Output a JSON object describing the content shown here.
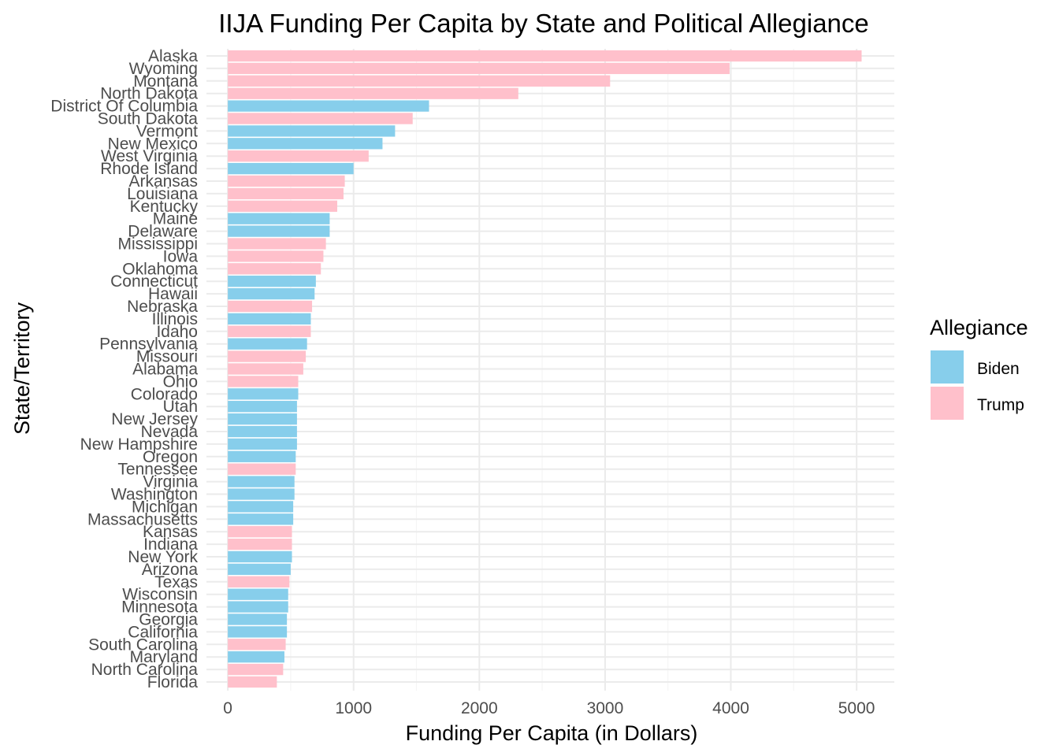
{
  "colors": {
    "Biden": "#87CEEB",
    "Trump": "#FFC0CB",
    "grid_major": "#EBEBEB",
    "grid_minor": "#F5F5F5",
    "text": "#4d4d4d"
  },
  "legend": {
    "title": "Allegiance",
    "position": "right",
    "items": [
      "Biden",
      "Trump"
    ]
  },
  "chart_data": {
    "type": "bar",
    "orientation": "horizontal",
    "title": "IIJA Funding Per Capita by State and Political Allegiance",
    "xlabel": "Funding Per Capita (in Dollars)",
    "ylabel": "State/Territory",
    "xlim": [
      -170,
      5300
    ],
    "x_ticks": [
      0,
      1000,
      2000,
      3000,
      4000,
      5000
    ],
    "grid": true,
    "categories": [
      "Alaska",
      "Wyoming",
      "Montana",
      "North Dakota",
      "District Of Columbia",
      "South Dakota",
      "Vermont",
      "New Mexico",
      "West Virginia",
      "Rhode Island",
      "Arkansas",
      "Louisiana",
      "Kentucky",
      "Maine",
      "Delaware",
      "Mississippi",
      "Iowa",
      "Oklahoma",
      "Connecticut",
      "Hawaii",
      "Nebraska",
      "Illinois",
      "Idaho",
      "Pennsylvania",
      "Missouri",
      "Alabama",
      "Ohio",
      "Colorado",
      "Utah",
      "New Jersey",
      "Nevada",
      "New Hampshire",
      "Oregon",
      "Tennessee",
      "Virginia",
      "Washington",
      "Michigan",
      "Massachusetts",
      "Kansas",
      "Indiana",
      "New York",
      "Arizona",
      "Texas",
      "Wisconsin",
      "Minnesota",
      "Georgia",
      "California",
      "South Carolina",
      "Maryland",
      "North Carolina",
      "Florida"
    ],
    "values": [
      5040,
      3990,
      3040,
      2310,
      1600,
      1470,
      1330,
      1230,
      1120,
      1000,
      930,
      920,
      870,
      810,
      810,
      780,
      760,
      740,
      700,
      690,
      670,
      660,
      660,
      630,
      620,
      600,
      560,
      560,
      550,
      550,
      550,
      550,
      540,
      540,
      530,
      530,
      520,
      520,
      510,
      510,
      510,
      500,
      490,
      480,
      480,
      470,
      470,
      460,
      450,
      440,
      390
    ],
    "allegiance": [
      "Trump",
      "Trump",
      "Trump",
      "Trump",
      "Biden",
      "Trump",
      "Biden",
      "Biden",
      "Trump",
      "Biden",
      "Trump",
      "Trump",
      "Trump",
      "Biden",
      "Biden",
      "Trump",
      "Trump",
      "Trump",
      "Biden",
      "Biden",
      "Trump",
      "Biden",
      "Trump",
      "Biden",
      "Trump",
      "Trump",
      "Trump",
      "Biden",
      "Biden",
      "Biden",
      "Biden",
      "Biden",
      "Biden",
      "Trump",
      "Biden",
      "Biden",
      "Biden",
      "Biden",
      "Trump",
      "Trump",
      "Biden",
      "Biden",
      "Trump",
      "Biden",
      "Biden",
      "Biden",
      "Biden",
      "Trump",
      "Biden",
      "Trump",
      "Trump"
    ]
  }
}
